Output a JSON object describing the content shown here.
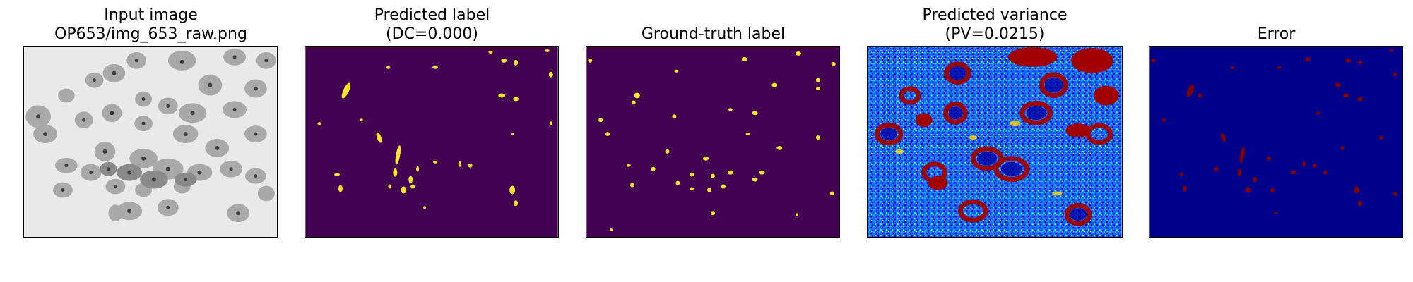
{
  "figure": {
    "panels": [
      {
        "id": "input",
        "title_lines": [
          "Input image",
          "OP653/img_653_raw.png"
        ],
        "colormap": "grayscale"
      },
      {
        "id": "pred_label",
        "title_lines": [
          "Predicted label",
          "(DC=0.000)"
        ],
        "colormap": "viridis-binary"
      },
      {
        "id": "gt_label",
        "title_lines": [
          "Ground-truth label"
        ],
        "colormap": "viridis-binary"
      },
      {
        "id": "variance",
        "title_lines": [
          "Predicted variance",
          "(PV=0.0215)"
        ],
        "colormap": "jet"
      },
      {
        "id": "error",
        "title_lines": [
          "Error"
        ],
        "colormap": "jet-binary"
      }
    ],
    "metrics": {
      "dice": 0.0,
      "predicted_variance": 0.0215
    },
    "colors": {
      "viridis_bg": "#440154",
      "viridis_fg": "#fde725",
      "jet_bg": "#00008b",
      "jet_fg": "#800000",
      "gray_bg": "#e9e9e9",
      "cell": "#a8a8a8",
      "nucleus": "#404040"
    }
  }
}
